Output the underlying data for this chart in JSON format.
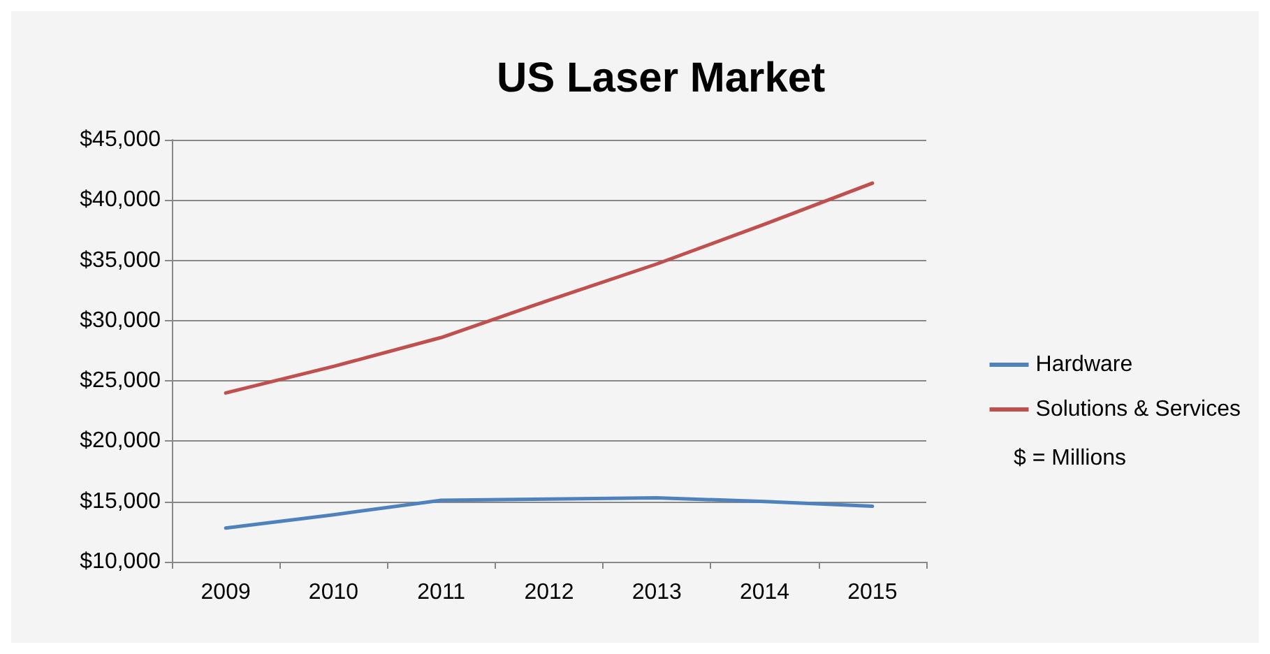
{
  "chart_data": {
    "type": "line",
    "title": "US Laser Market",
    "categories": [
      "2009",
      "2010",
      "2011",
      "2012",
      "2013",
      "2014",
      "2015"
    ],
    "series": [
      {
        "name": "Hardware",
        "color": "#4f81bd",
        "values": [
          12800,
          13900,
          15100,
          15200,
          15300,
          15000,
          14600
        ]
      },
      {
        "name": "Solutions & Services",
        "color": "#c0504d",
        "values": [
          24000,
          26200,
          28600,
          31700,
          34700,
          38000,
          41400
        ]
      }
    ],
    "ylim": [
      10000,
      45000
    ],
    "yticks": [
      {
        "value": 10000,
        "label": "$10,000"
      },
      {
        "value": 15000,
        "label": "$15,000"
      },
      {
        "value": 20000,
        "label": "$20,000"
      },
      {
        "value": 25000,
        "label": "$25,000"
      },
      {
        "value": 30000,
        "label": "$30,000"
      },
      {
        "value": 35000,
        "label": "$35,000"
      },
      {
        "value": 40000,
        "label": "$40,000"
      },
      {
        "value": 45000,
        "label": "$45,000"
      }
    ],
    "grid": "y",
    "legend": "right",
    "marker": "none",
    "line_style": "solid",
    "annotations": [
      "$ = Millions"
    ]
  }
}
